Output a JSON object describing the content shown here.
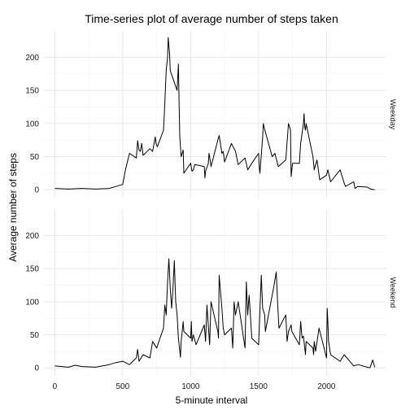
{
  "chart_data": {
    "type": "line",
    "title": "Time-series plot of average number of steps taken",
    "xlabel": "5-minute interval",
    "ylabel": "Average number of steps",
    "xlim": [
      -80,
      2435
    ],
    "ylim": [
      -12,
      240
    ],
    "x_ticks": [
      0,
      500,
      1000,
      1500,
      2000
    ],
    "y_ticks": [
      0,
      50,
      100,
      150,
      200
    ],
    "grid": true,
    "panels": [
      {
        "name": "Weekday",
        "x": [
          0,
          100,
          200,
          300,
          400,
          450,
          500,
          520,
          550,
          600,
          610,
          620,
          630,
          640,
          650,
          700,
          720,
          740,
          745,
          755,
          800,
          810,
          820,
          830,
          835,
          845,
          850,
          900,
          910,
          915,
          920,
          930,
          945,
          950,
          1000,
          1010,
          1020,
          1030,
          1100,
          1105,
          1110,
          1130,
          1135,
          1140,
          1150,
          1200,
          1210,
          1230,
          1240,
          1250,
          1300,
          1330,
          1350,
          1400,
          1420,
          1450,
          1500,
          1505,
          1510,
          1530,
          1535,
          1540,
          1600,
          1620,
          1645,
          1700,
          1720,
          1735,
          1740,
          1750,
          1800,
          1805,
          1810,
          1830,
          1835,
          1840,
          1845,
          1850,
          1900,
          1910,
          1920,
          1930,
          1950,
          2000,
          2010,
          2030,
          2100,
          2130,
          2140,
          2200,
          2210,
          2230,
          2300,
          2325,
          2355
        ],
        "y": [
          2,
          1,
          2,
          1,
          2,
          5,
          8,
          30,
          55,
          48,
          74,
          60,
          58,
          70,
          52,
          62,
          58,
          80,
          70,
          65,
          90,
          130,
          180,
          200,
          230,
          205,
          180,
          150,
          190,
          130,
          80,
          50,
          60,
          25,
          40,
          28,
          30,
          38,
          35,
          18,
          28,
          40,
          55,
          50,
          35,
          75,
          82,
          55,
          58,
          42,
          70,
          58,
          38,
          48,
          30,
          40,
          55,
          35,
          25,
          80,
          100,
          95,
          50,
          55,
          35,
          45,
          100,
          90,
          20,
          40,
          40,
          55,
          70,
          100,
          115,
          95,
          90,
          100,
          50,
          30,
          38,
          45,
          15,
          22,
          30,
          12,
          30,
          10,
          5,
          12,
          2,
          5,
          4,
          1,
          0
        ]
      },
      {
        "name": "Weekend",
        "x": [
          0,
          50,
          100,
          150,
          200,
          300,
          400,
          450,
          500,
          550,
          600,
          610,
          620,
          650,
          700,
          720,
          750,
          800,
          810,
          820,
          830,
          840,
          850,
          860,
          870,
          880,
          890,
          900,
          910,
          925,
          930,
          945,
          950,
          1000,
          1005,
          1010,
          1020,
          1040,
          1100,
          1110,
          1120,
          1140,
          1150,
          1200,
          1205,
          1210,
          1230,
          1240,
          1250,
          1300,
          1310,
          1320,
          1330,
          1350,
          1400,
          1410,
          1420,
          1430,
          1440,
          1450,
          1500,
          1520,
          1530,
          1545,
          1550,
          1600,
          1610,
          1630,
          1640,
          1650,
          1700,
          1710,
          1720,
          1740,
          1745,
          1800,
          1810,
          1820,
          1830,
          1845,
          1850,
          1900,
          1905,
          1910,
          1920,
          1945,
          2000,
          2005,
          2010,
          2015,
          2030,
          2100,
          2130,
          2200,
          2230,
          2300,
          2320,
          2340,
          2355
        ],
        "y": [
          3,
          2,
          1,
          4,
          2,
          1,
          5,
          8,
          10,
          5,
          15,
          28,
          10,
          20,
          15,
          40,
          30,
          60,
          95,
          80,
          130,
          165,
          120,
          90,
          120,
          162,
          100,
          80,
          45,
          16,
          40,
          70,
          55,
          45,
          70,
          40,
          50,
          35,
          65,
          40,
          95,
          35,
          100,
          55,
          45,
          140,
          90,
          60,
          50,
          60,
          30,
          100,
          80,
          100,
          30,
          130,
          80,
          110,
          80,
          45,
          35,
          140,
          90,
          80,
          55,
          110,
          120,
          145,
          100,
          60,
          80,
          40,
          55,
          65,
          55,
          35,
          70,
          45,
          48,
          20,
          40,
          30,
          20,
          40,
          25,
          60,
          15,
          90,
          70,
          40,
          20,
          10,
          20,
          3,
          5,
          1,
          0,
          12,
          1
        ]
      }
    ]
  }
}
